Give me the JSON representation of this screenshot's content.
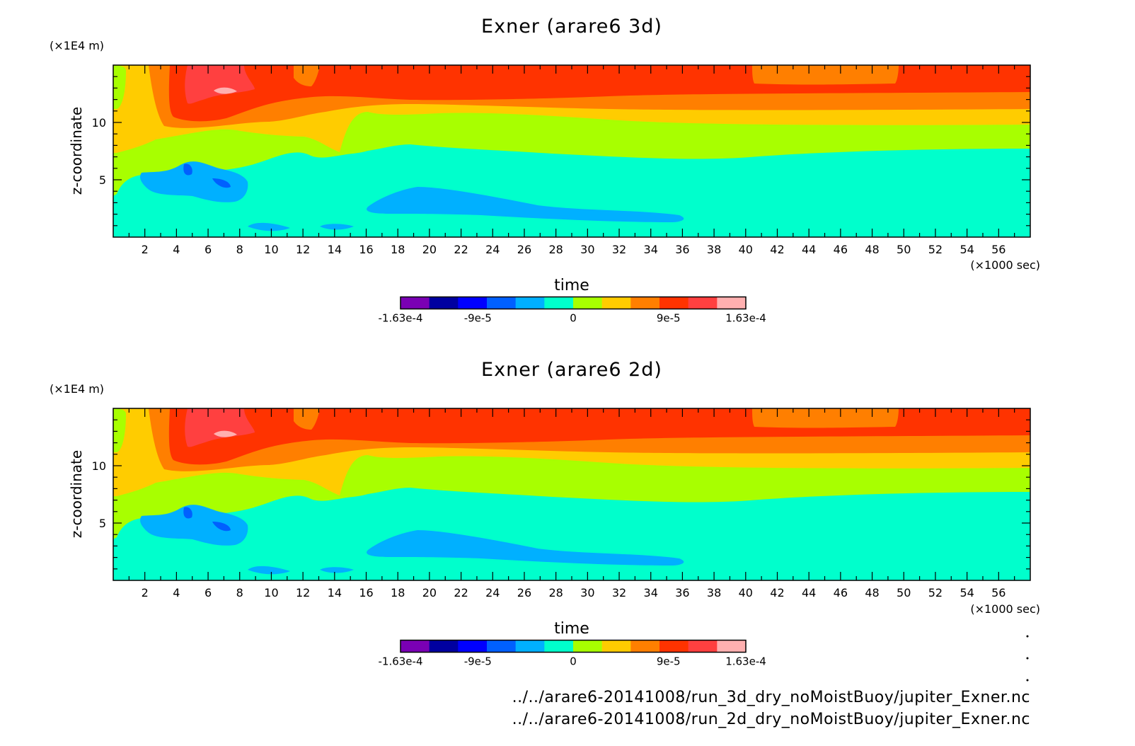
{
  "footer": {
    "source_3d": "../../arare6-20141008/run_3d_dry_noMoistBuoy/jupiter_Exner.nc",
    "source_2d": "../../arare6-20141008/run_2d_dry_noMoistBuoy/jupiter_Exner.nc"
  },
  "colorbar": {
    "colors": [
      "#7a00b4",
      "#0000a0",
      "#0000ff",
      "#0060ff",
      "#00b0ff",
      "#00ffcc",
      "#a8ff00",
      "#ffcc00",
      "#ff7f00",
      "#ff3300",
      "#ff4040",
      "#ffb0b0"
    ],
    "tick_labels": [
      "-1.63e-4",
      "-9e-5",
      "0",
      "9e-5",
      "1.63e-4"
    ],
    "tick_values": [
      -0.000163,
      -9e-05,
      0,
      9e-05,
      0.000163
    ]
  },
  "chart_data": [
    {
      "type": "heatmap",
      "title": "Exner (arare6 3d)",
      "xlabel": "time",
      "x_unit": "(×1000 sec)",
      "ylabel": "z-coordinate",
      "y_unit": "(×1E4 m)",
      "xlim": [
        0,
        58
      ],
      "ylim": [
        0,
        15
      ],
      "x_ticks": [
        2,
        4,
        6,
        8,
        10,
        12,
        14,
        16,
        18,
        20,
        22,
        24,
        26,
        28,
        30,
        32,
        34,
        36,
        38,
        40,
        42,
        44,
        46,
        48,
        50,
        52,
        54,
        56
      ],
      "y_ticks": [
        5,
        10
      ],
      "grid": false
    },
    {
      "type": "heatmap",
      "title": "Exner (arare6 2d)",
      "xlabel": "time",
      "x_unit": "(×1000 sec)",
      "ylabel": "z-coordinate",
      "y_unit": "(×1E4 m)",
      "xlim": [
        0,
        58
      ],
      "ylim": [
        0,
        15
      ],
      "x_ticks": [
        2,
        4,
        6,
        8,
        10,
        12,
        14,
        16,
        18,
        20,
        22,
        24,
        26,
        28,
        30,
        32,
        34,
        36,
        38,
        40,
        42,
        44,
        46,
        48,
        50,
        52,
        54,
        56
      ],
      "y_ticks": [
        5,
        10
      ],
      "grid": false
    }
  ]
}
